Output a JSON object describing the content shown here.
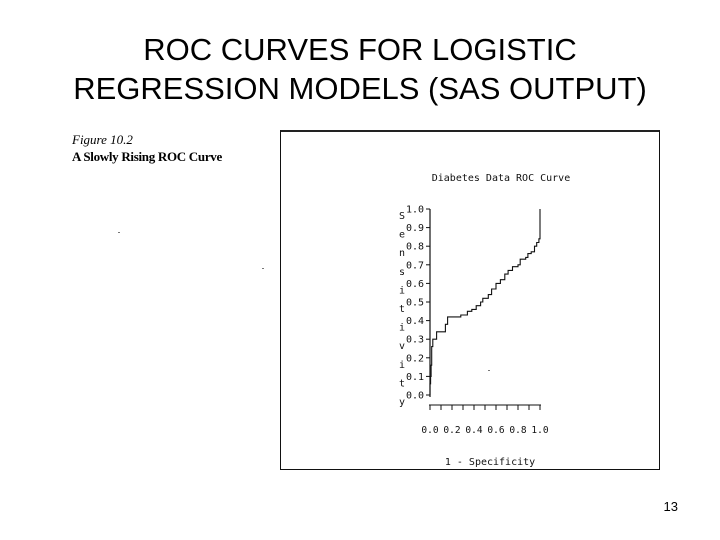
{
  "slide": {
    "title_line1": "ROC CURVES FOR LOGISTIC",
    "title_line2": "REGRESSION MODELS (SAS OUTPUT)",
    "page_number": "13"
  },
  "figure": {
    "figure_number": "Figure 10.2",
    "caption": "A Slowly Rising ROC Curve"
  },
  "chart_data": {
    "type": "line",
    "title": "Diabetes Data ROC Curve",
    "ylabel": "Sensitivity",
    "xlabel": "1 - Specificity",
    "xlim": [
      0,
      1
    ],
    "ylim": [
      0,
      1
    ],
    "y_ticks": [
      "0.0",
      "0.1",
      "0.2",
      "0.3",
      "0.4",
      "0.5",
      "0.6",
      "0.7",
      "0.8",
      "0.9",
      "1.0"
    ],
    "x_ticks": [
      "0.0",
      "0.2",
      "0.4",
      "0.6",
      "0.8",
      "1.0"
    ],
    "grid": false,
    "series": [
      {
        "name": "",
        "step": true,
        "points": [
          [
            0.0,
            0.0
          ],
          [
            0.0,
            0.06
          ],
          [
            0.005,
            0.1
          ],
          [
            0.01,
            0.16
          ],
          [
            0.015,
            0.22
          ],
          [
            0.015,
            0.26
          ],
          [
            0.025,
            0.26
          ],
          [
            0.025,
            0.3
          ],
          [
            0.06,
            0.3
          ],
          [
            0.06,
            0.34
          ],
          [
            0.14,
            0.34
          ],
          [
            0.14,
            0.38
          ],
          [
            0.16,
            0.38
          ],
          [
            0.16,
            0.42
          ],
          [
            0.24,
            0.42
          ],
          [
            0.28,
            0.43
          ],
          [
            0.34,
            0.45
          ],
          [
            0.38,
            0.46
          ],
          [
            0.42,
            0.48
          ],
          [
            0.46,
            0.5
          ],
          [
            0.48,
            0.52
          ],
          [
            0.53,
            0.54
          ],
          [
            0.56,
            0.57
          ],
          [
            0.6,
            0.6
          ],
          [
            0.64,
            0.62
          ],
          [
            0.68,
            0.65
          ],
          [
            0.71,
            0.67
          ],
          [
            0.75,
            0.69
          ],
          [
            0.8,
            0.7
          ],
          [
            0.82,
            0.73
          ],
          [
            0.87,
            0.74
          ],
          [
            0.89,
            0.76
          ],
          [
            0.92,
            0.77
          ],
          [
            0.95,
            0.8
          ],
          [
            0.97,
            0.82
          ],
          [
            0.99,
            0.84
          ],
          [
            1.0,
            0.85
          ],
          [
            1.0,
            1.0
          ]
        ]
      }
    ]
  }
}
